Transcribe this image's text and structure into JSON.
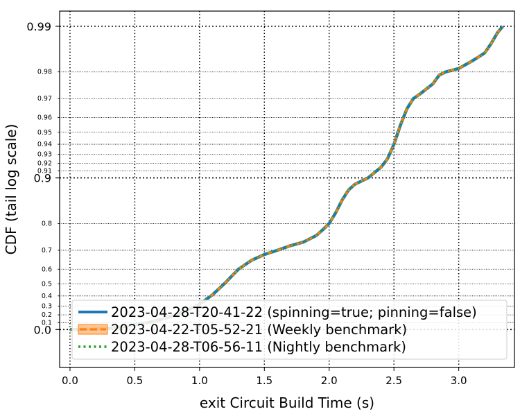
{
  "chart_data": {
    "type": "line",
    "xlabel": "exit Circuit Build Time (s)",
    "ylabel": "CDF (tail log scale)",
    "xlim": [
      -0.08,
      3.43
    ],
    "x_ticks": [
      {
        "value": 0.0,
        "label": "0.0"
      },
      {
        "value": 0.5,
        "label": "0.5"
      },
      {
        "value": 1.0,
        "label": "1.0"
      },
      {
        "value": 1.5,
        "label": "1.5"
      },
      {
        "value": 2.0,
        "label": "2.0"
      },
      {
        "value": 2.5,
        "label": "2.5"
      },
      {
        "value": 3.0,
        "label": "3.0"
      }
    ],
    "y_scale": "tail-log",
    "y_major_ticks": [
      {
        "value": 0.0,
        "label": "0.0"
      },
      {
        "value": 0.9,
        "label": "0.9"
      },
      {
        "value": 0.99,
        "label": "0.99"
      }
    ],
    "y_minor_ticks": [
      {
        "value": 0.1,
        "label": "0.1"
      },
      {
        "value": 0.2,
        "label": "0.2"
      },
      {
        "value": 0.3,
        "label": "0.3"
      },
      {
        "value": 0.4,
        "label": "0.4"
      },
      {
        "value": 0.5,
        "label": "0.5"
      },
      {
        "value": 0.6,
        "label": "0.6"
      },
      {
        "value": 0.7,
        "label": "0.7"
      },
      {
        "value": 0.8,
        "label": "0.8"
      },
      {
        "value": 0.91,
        "label": "0.91"
      },
      {
        "value": 0.92,
        "label": "0.92"
      },
      {
        "value": 0.93,
        "label": "0.93"
      },
      {
        "value": 0.94,
        "label": "0.94"
      },
      {
        "value": 0.95,
        "label": "0.95"
      },
      {
        "value": 0.96,
        "label": "0.96"
      },
      {
        "value": 0.97,
        "label": "0.97"
      },
      {
        "value": 0.98,
        "label": "0.98"
      }
    ],
    "grid": true,
    "legend_position": "bottom-right",
    "x": [
      0.0,
      0.1,
      0.2,
      0.3,
      0.4,
      0.5,
      0.6,
      0.7,
      0.8,
      0.9,
      1.0,
      1.1,
      1.2,
      1.3,
      1.4,
      1.5,
      1.6,
      1.7,
      1.8,
      1.9,
      1.95,
      2.0,
      2.05,
      2.1,
      2.15,
      2.2,
      2.3,
      2.4,
      2.45,
      2.5,
      2.55,
      2.6,
      2.65,
      2.7,
      2.8,
      2.85,
      2.9,
      3.0,
      3.1,
      3.15,
      3.2,
      3.25,
      3.3,
      3.34
    ],
    "series": [
      {
        "name": "2023-04-28-T20-41-22 (spinning=true; pinning=false)",
        "color": "#1f77b4",
        "style": "solid"
      },
      {
        "name": "2023-04-22-T05-52-21 (Weekly benchmark)",
        "color": "#ff7f0e",
        "style": "dashed-band"
      },
      {
        "name": "2023-04-28-T06-56-11 (Nightly benchmark)",
        "color": "#2ca02c",
        "style": "dotted"
      }
    ],
    "values": [
      0.0,
      0.002,
      0.008,
      0.02,
      0.04,
      0.07,
      0.1,
      0.14,
      0.19,
      0.25,
      0.32,
      0.41,
      0.51,
      0.6,
      0.65,
      0.68,
      0.7,
      0.72,
      0.735,
      0.76,
      0.78,
      0.8,
      0.83,
      0.86,
      0.88,
      0.89,
      0.9,
      0.915,
      0.925,
      0.94,
      0.955,
      0.965,
      0.97,
      0.972,
      0.976,
      0.979,
      0.98,
      0.981,
      0.983,
      0.984,
      0.985,
      0.987,
      0.989,
      0.99
    ]
  }
}
